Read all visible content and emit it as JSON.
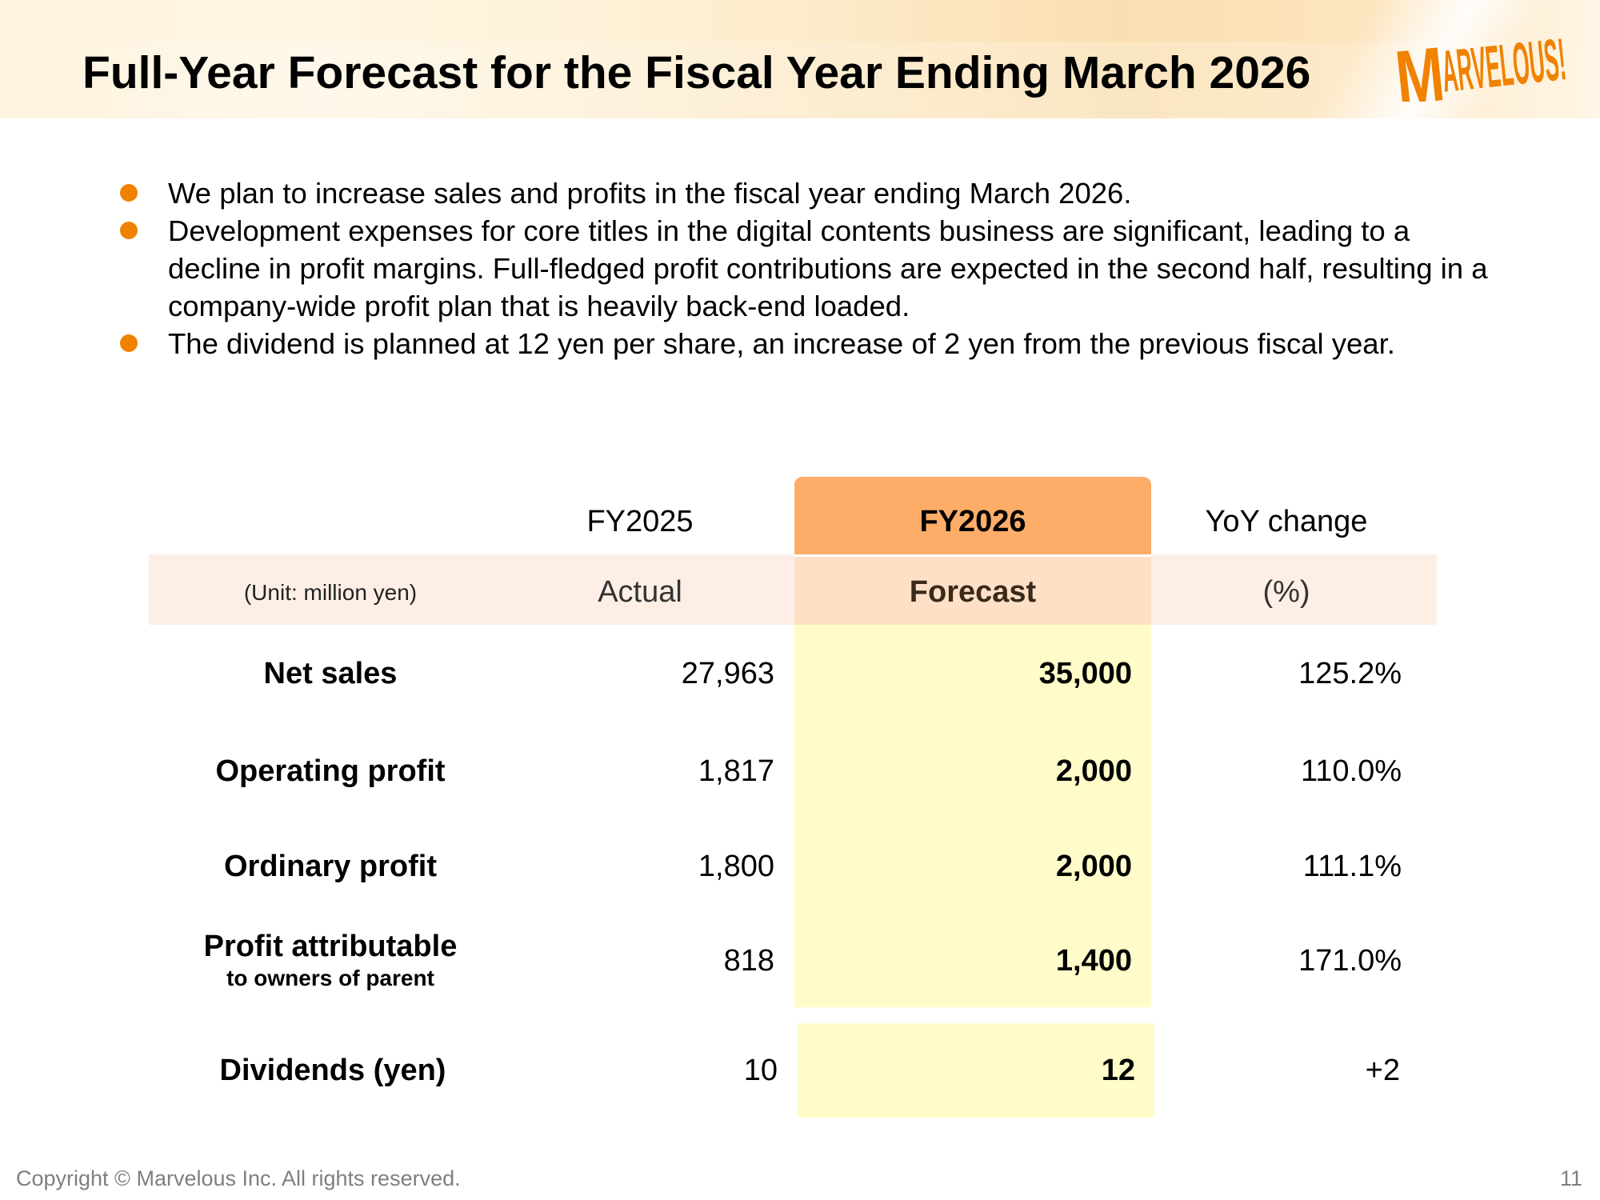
{
  "slide": {
    "title": "Full-Year Forecast for the Fiscal Year Ending March 2026",
    "logo_text": "MARVELOUS!",
    "brand_color": "#f08200"
  },
  "bullets": [
    "We plan to increase sales and profits in the fiscal year ending March 2026.",
    "Development expenses for core titles in the digital contents business are significant, leading to a decline in profit margins. Full-fledged profit contributions are expected in the second half, resulting in a company-wide profit plan that is heavily back-end loaded.",
    "The dividend is planned at 12 yen per share, an increase of 2 yen from the previous fiscal year."
  ],
  "table": {
    "columns": [
      {
        "header": "FY2025",
        "sub": "Actual"
      },
      {
        "header": "FY2026",
        "sub": "Forecast"
      },
      {
        "header": "YoY change",
        "sub": "(%)"
      }
    ],
    "unit_label": "(Unit: million yen)",
    "rows": [
      {
        "label": "Net sales",
        "fy2025": "27,963",
        "fy2026": "35,000",
        "yoy": "125.2%"
      },
      {
        "label": "Operating profit",
        "fy2025": "1,817",
        "fy2026": "2,000",
        "yoy": "110.0%"
      },
      {
        "label": "Ordinary profit",
        "fy2025": "1,800",
        "fy2026": "2,000",
        "yoy": "111.1%"
      },
      {
        "label": "Profit attributable",
        "label_sub": "to owners of parent",
        "fy2025": "818",
        "fy2026": "1,400",
        "yoy": "171.0%"
      },
      {
        "label": "Dividends (yen)",
        "fy2025": "10",
        "fy2026": "12",
        "yoy": "+2"
      }
    ],
    "highlight_colors": {
      "header": "#fdad68",
      "band": "#fdefe5",
      "forecast_band": "#fde0c6",
      "forecast_body": "#fffcc9"
    }
  },
  "footer": {
    "copyright": "Copyright © Marvelous Inc. All rights reserved.",
    "page_number": "11"
  }
}
